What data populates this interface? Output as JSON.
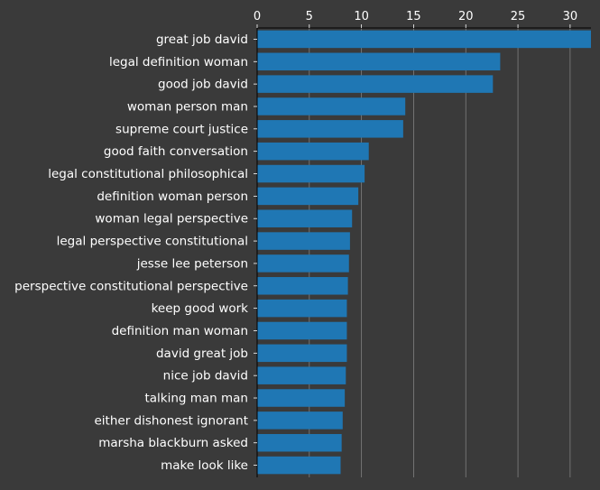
{
  "chart_data": {
    "type": "bar",
    "orientation": "horizontal",
    "title": "",
    "xlabel": "",
    "ylabel": "",
    "xlim": [
      0,
      32
    ],
    "x_ticks": [
      0,
      5,
      10,
      15,
      20,
      25,
      30
    ],
    "x_tick_labels": [
      "0",
      "5",
      "10",
      "15",
      "20",
      "25",
      "30"
    ],
    "x_axis_position": "top",
    "grid": true,
    "bar_color": "#1f77b4",
    "background_color": "#3a3a3a",
    "text_color": "#ffffff",
    "grid_color": "#888888",
    "categories": [
      "great job david",
      "legal definition woman",
      "good job david",
      "woman person man",
      "supreme court justice",
      "good faith conversation",
      "legal constitutional philosophical",
      "definition woman person",
      "woman legal perspective",
      "legal perspective constitutional",
      "jesse lee peterson",
      "perspective constitutional perspective",
      "keep good work",
      "definition man woman",
      "david great job",
      "nice job david",
      "talking man man",
      "either dishonest ignorant",
      "marsha blackburn asked",
      "make look like"
    ],
    "values": [
      32,
      23.3,
      22.6,
      14.2,
      14.0,
      10.7,
      10.3,
      9.7,
      9.1,
      8.9,
      8.8,
      8.7,
      8.6,
      8.6,
      8.6,
      8.5,
      8.4,
      8.2,
      8.1,
      8.0
    ]
  }
}
